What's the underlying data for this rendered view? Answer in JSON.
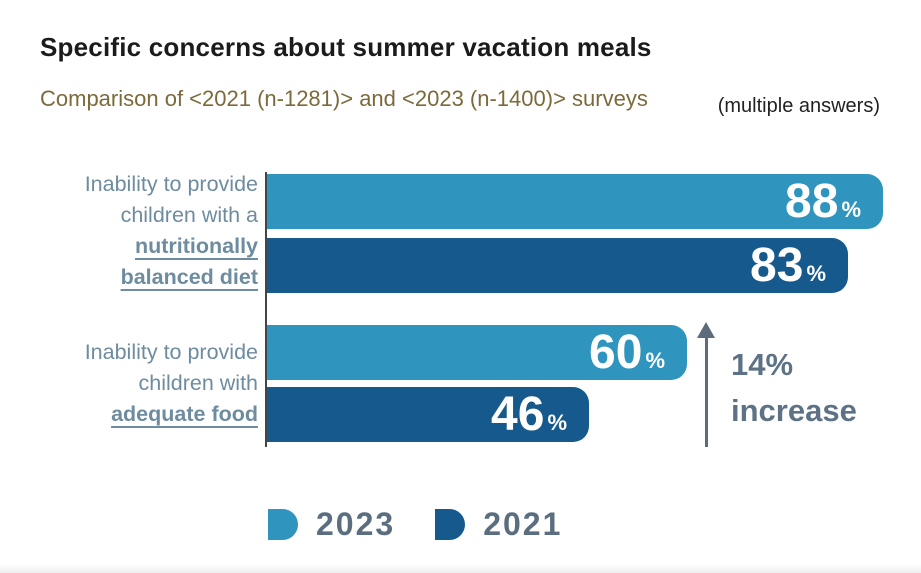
{
  "header": {
    "title": "Specific concerns about summer vacation meals",
    "subtitle": "Comparison of <2021 (n-1281)> and <2023 (n-1400)> surveys",
    "note": "(multiple answers)"
  },
  "chart_data": {
    "type": "bar",
    "orientation": "horizontal",
    "unit": "%",
    "categories": [
      "Inability to provide children with a nutritionally balanced diet",
      "Inability to provide children with adequate food"
    ],
    "series": [
      {
        "name": "2023",
        "color": "#2F95BE",
        "values": [
          88,
          60
        ]
      },
      {
        "name": "2021",
        "color": "#165A8D",
        "values": [
          83,
          46
        ]
      }
    ],
    "xlim": [
      0,
      100
    ],
    "grid": false,
    "legend_position": "bottom",
    "annotation": {
      "value": "14%",
      "label": "increase",
      "arrow": "up",
      "applies_to": "Inability to provide children with adequate food"
    }
  },
  "category_labels": {
    "group1": {
      "line1": "Inability to provide",
      "line2": "children with a",
      "bold1": "nutritionally",
      "bold2": "balanced diet"
    },
    "group2": {
      "line1": "Inability to provide",
      "line2": "children with",
      "bold1": "adequate food"
    }
  },
  "colors": {
    "series_2023": "#2F95BE",
    "series_2021": "#165A8D",
    "category_label": "#6D8C9F",
    "annotation_text": "#5E7285",
    "subtitle_text": "#7B6A3B"
  }
}
